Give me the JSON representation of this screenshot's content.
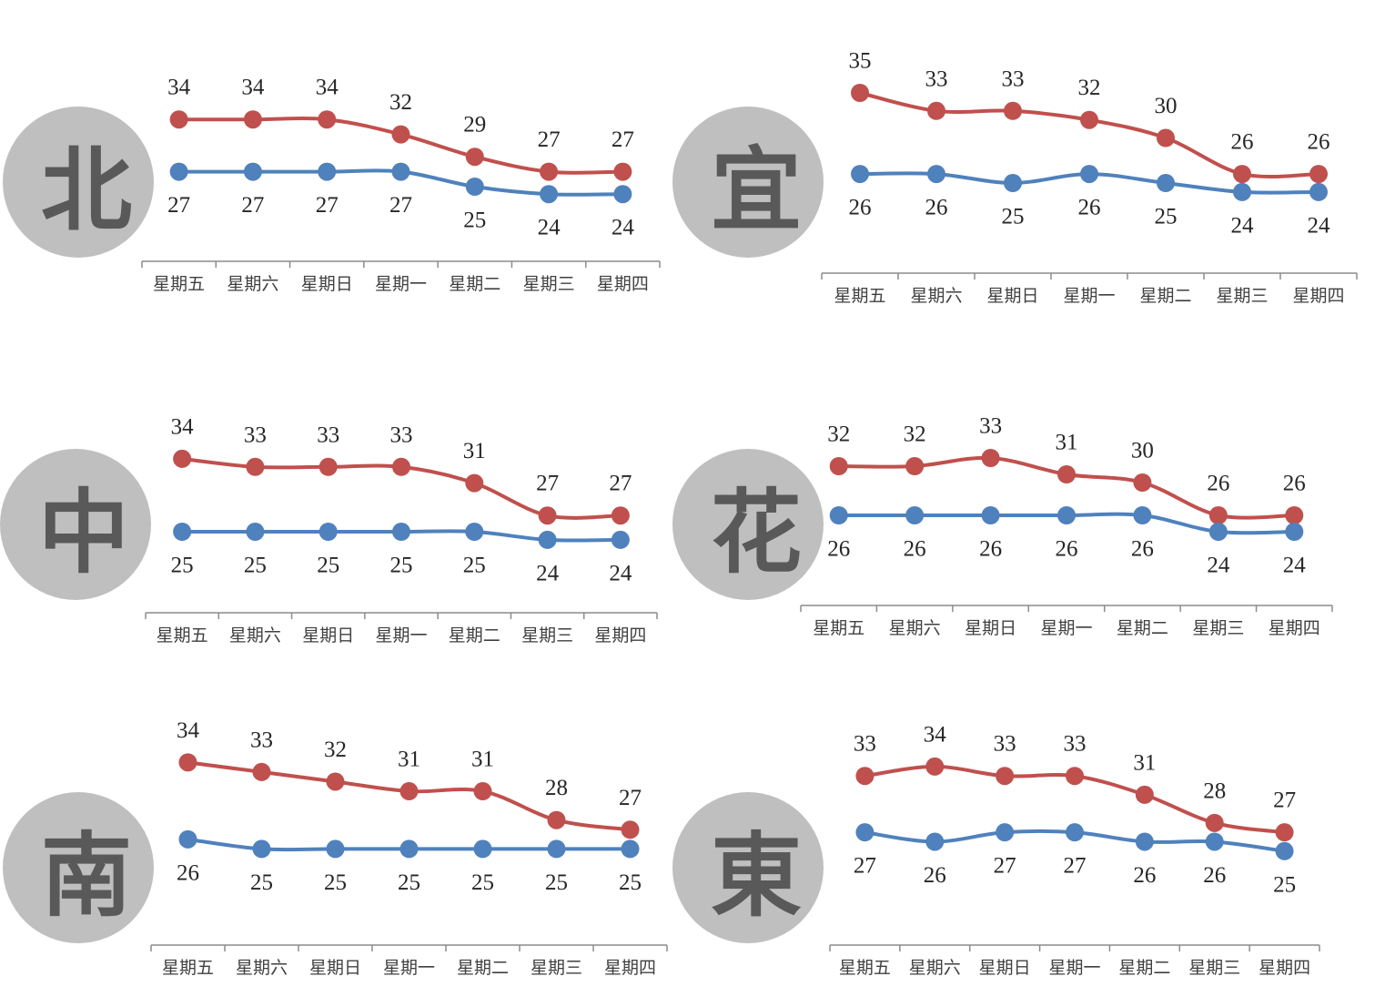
{
  "style": {
    "badge_fill": "#bfbfbf",
    "badge_text": "#595959",
    "axis_color": "#8c8c8c",
    "tick_label_color": "#404040",
    "data_label_color": "#262626"
  },
  "chart_data": [
    {
      "type": "line",
      "region": "北",
      "categories": [
        "星期五",
        "星期六",
        "星期日",
        "星期一",
        "星期二",
        "星期三",
        "星期四"
      ],
      "series": [
        {
          "values": [
            34,
            34,
            34,
            32,
            29,
            27,
            27
          ],
          "color": "#c0504d"
        },
        {
          "values": [
            27,
            27,
            27,
            27,
            25,
            24,
            24
          ],
          "color": "#4f81bd"
        }
      ],
      "ylim": [
        15,
        40
      ],
      "grid": false,
      "legend": false
    },
    {
      "type": "line",
      "region": "宜",
      "categories": [
        "星期五",
        "星期六",
        "星期日",
        "星期一",
        "星期二",
        "星期三",
        "星期四"
      ],
      "series": [
        {
          "values": [
            35,
            33,
            33,
            32,
            30,
            26,
            26
          ],
          "color": "#c0504d"
        },
        {
          "values": [
            26,
            26,
            25,
            26,
            25,
            24,
            24
          ],
          "color": "#4f81bd"
        }
      ],
      "ylim": [
        15,
        40
      ],
      "grid": false,
      "legend": false
    },
    {
      "type": "line",
      "region": "中",
      "categories": [
        "星期五",
        "星期六",
        "星期日",
        "星期一",
        "星期二",
        "星期三",
        "星期四"
      ],
      "series": [
        {
          "values": [
            34,
            33,
            33,
            33,
            31,
            27,
            27
          ],
          "color": "#c0504d"
        },
        {
          "values": [
            25,
            25,
            25,
            25,
            25,
            24,
            24
          ],
          "color": "#4f81bd"
        }
      ],
      "ylim": [
        15,
        40
      ],
      "grid": false,
      "legend": false
    },
    {
      "type": "line",
      "region": "花",
      "categories": [
        "星期五",
        "星期六",
        "星期日",
        "星期一",
        "星期二",
        "星期三",
        "星期四"
      ],
      "series": [
        {
          "values": [
            32,
            32,
            33,
            31,
            30,
            26,
            26
          ],
          "color": "#c0504d"
        },
        {
          "values": [
            26,
            26,
            26,
            26,
            26,
            24,
            24
          ],
          "color": "#4f81bd"
        }
      ],
      "ylim": [
        15,
        40
      ],
      "grid": false,
      "legend": false
    },
    {
      "type": "line",
      "region": "南",
      "categories": [
        "星期五",
        "星期六",
        "星期日",
        "星期一",
        "星期二",
        "星期三",
        "星期四"
      ],
      "series": [
        {
          "values": [
            34,
            33,
            32,
            31,
            31,
            28,
            27
          ],
          "color": "#c0504d"
        },
        {
          "values": [
            26,
            25,
            25,
            25,
            25,
            25,
            25
          ],
          "color": "#4f81bd"
        }
      ],
      "ylim": [
        15,
        40
      ],
      "grid": false,
      "legend": false
    },
    {
      "type": "line",
      "region": "東",
      "categories": [
        "星期五",
        "星期六",
        "星期日",
        "星期一",
        "星期二",
        "星期三",
        "星期四"
      ],
      "series": [
        {
          "values": [
            33,
            34,
            33,
            33,
            31,
            28,
            27
          ],
          "color": "#c0504d"
        },
        {
          "values": [
            27,
            26,
            27,
            27,
            26,
            26,
            25
          ],
          "color": "#4f81bd"
        }
      ],
      "ylim": [
        15,
        40
      ],
      "grid": false,
      "legend": false
    }
  ]
}
